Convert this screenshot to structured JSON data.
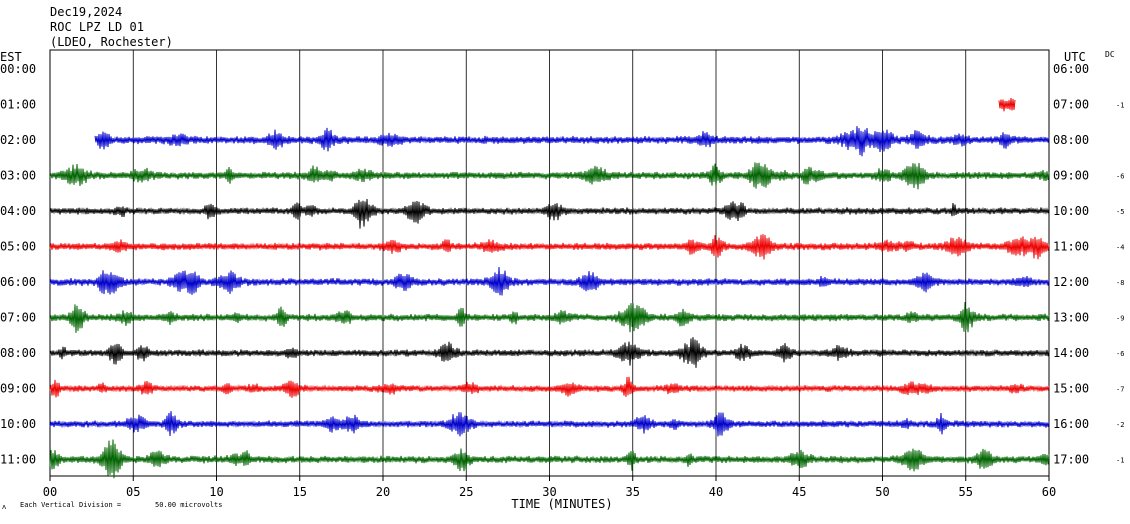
{
  "header": {
    "date": "Dec19,2024",
    "station": "ROC LPZ LD 01",
    "network": "(LDEO, Rochester)"
  },
  "left_tz": "EST",
  "right_tz": "UTC",
  "dc_label": "DC",
  "footer": {
    "x_axis_label": "TIME (MINUTES)",
    "scale_note": "Each Vertical Division =",
    "scale_value": "50.00 microvolts",
    "corner_mark": "ᴧ"
  },
  "colors": {
    "blue": "#0000cc",
    "green": "#006400",
    "black": "#000000",
    "red": "#ee0000",
    "grid": "#000000"
  },
  "chart_data": {
    "type": "line",
    "title": "",
    "xlabel": "TIME (MINUTES)",
    "ylabel": "",
    "xlim": [
      0,
      60
    ],
    "x_ticks": [
      "00",
      "05",
      "10",
      "15",
      "20",
      "25",
      "30",
      "35",
      "40",
      "45",
      "50",
      "55",
      "60"
    ],
    "grid": "vertical lines every 5 minutes",
    "series": [
      {
        "left": "00:00",
        "right": "06:00",
        "dc": "",
        "color": "black",
        "start": null,
        "end": null,
        "level": 0
      },
      {
        "left": "01:00",
        "right": "07:00",
        "dc": "-1",
        "color": "red",
        "start": 57.0,
        "end": 58.0,
        "level": 1.0
      },
      {
        "left": "02:00",
        "right": "08:00",
        "dc": "",
        "color": "blue",
        "start": 2.7,
        "end": 60,
        "level": 0.55
      },
      {
        "left": "03:00",
        "right": "09:00",
        "dc": "-6",
        "color": "green",
        "start": 0,
        "end": 60,
        "level": 0.5
      },
      {
        "left": "04:00",
        "right": "10:00",
        "dc": "-5",
        "color": "black",
        "start": 0,
        "end": 60,
        "level": 0.45
      },
      {
        "left": "05:00",
        "right": "11:00",
        "dc": "-4",
        "color": "red",
        "start": 0,
        "end": 60,
        "level": 0.5
      },
      {
        "left": "06:00",
        "right": "12:00",
        "dc": "-8",
        "color": "blue",
        "start": 0,
        "end": 60,
        "level": 0.5
      },
      {
        "left": "07:00",
        "right": "13:00",
        "dc": "-9",
        "color": "green",
        "start": 0,
        "end": 60,
        "level": 0.5
      },
      {
        "left": "08:00",
        "right": "14:00",
        "dc": "-6",
        "color": "black",
        "start": 0,
        "end": 60,
        "level": 0.45
      },
      {
        "left": "09:00",
        "right": "15:00",
        "dc": "-7",
        "color": "red",
        "start": 0,
        "end": 60,
        "level": 0.4
      },
      {
        "left": "10:00",
        "right": "16:00",
        "dc": "-2",
        "color": "blue",
        "start": 0,
        "end": 60,
        "level": 0.45
      },
      {
        "left": "11:00",
        "right": "17:00",
        "dc": "-1",
        "color": "green",
        "start": 0,
        "end": 60,
        "level": 0.5
      }
    ]
  }
}
